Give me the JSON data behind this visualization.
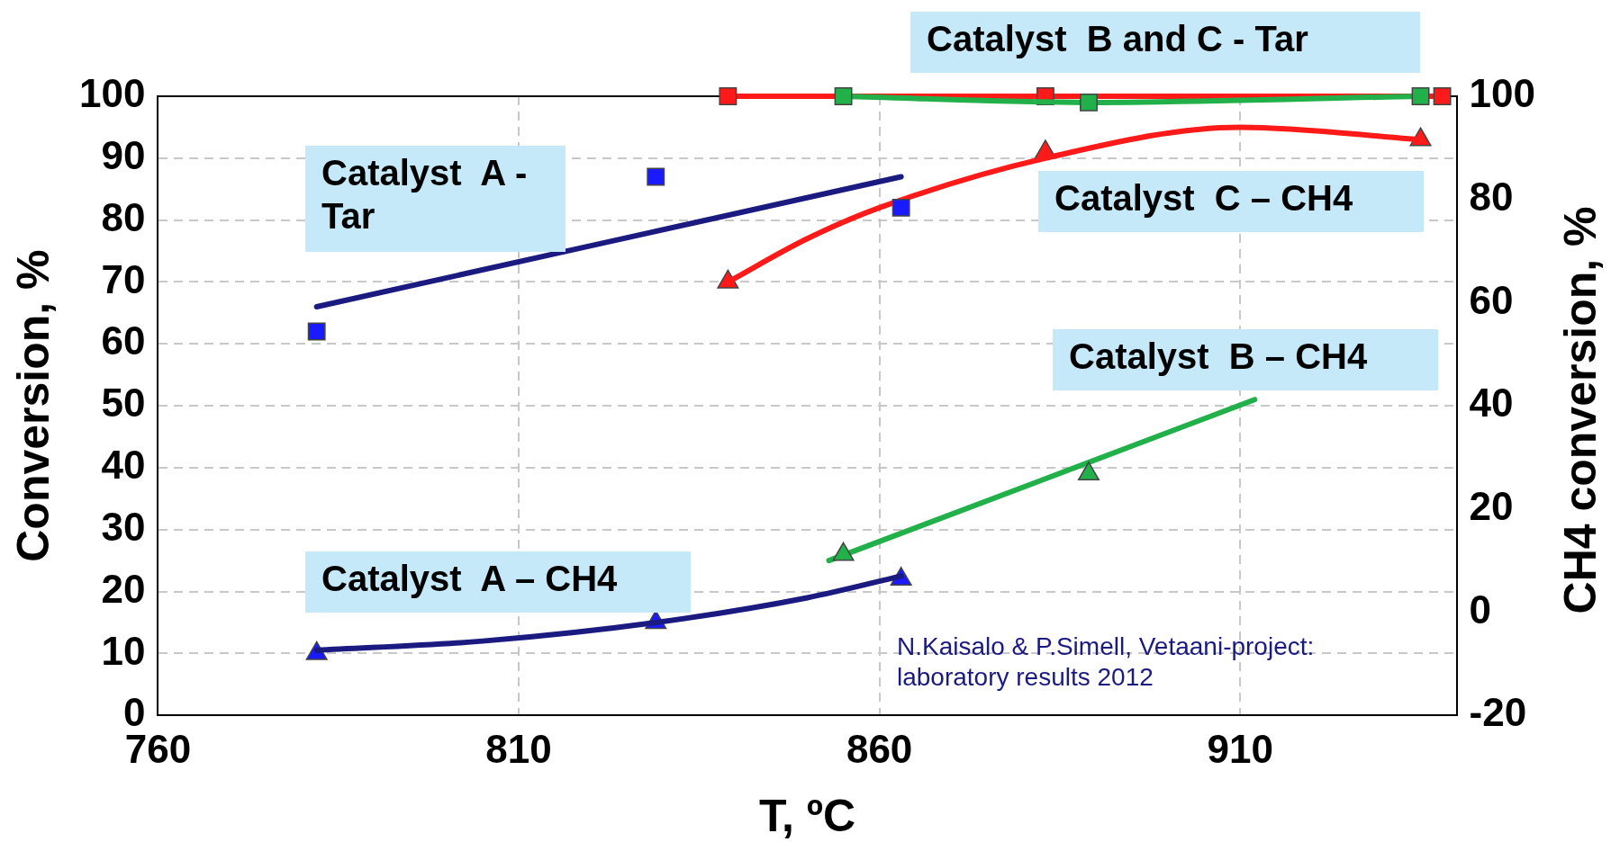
{
  "chart_data": {
    "type": "scatter",
    "xlabel": "T, ºC",
    "ylabel": "Conversion, %",
    "y2label": "CH4 conversion, %",
    "xlim": [
      760,
      940
    ],
    "xticks": [
      760,
      810,
      860,
      910
    ],
    "ylim": [
      0,
      100
    ],
    "yticks": [
      0,
      10,
      20,
      30,
      40,
      50,
      60,
      70,
      80,
      90,
      100
    ],
    "y2lim": [
      -20,
      100
    ],
    "y2ticks": [
      -20,
      0,
      20,
      40,
      60,
      80,
      100
    ],
    "grid": true,
    "legend": false,
    "series": [
      {
        "type": "line",
        "marker": "none",
        "color": "#1a1a80",
        "x": [
          782,
          863
        ],
        "values": [
          66,
          87
        ]
      },
      {
        "marker": "square",
        "color": "#1a1aff",
        "x": [
          782,
          829,
          863
        ],
        "values": [
          62,
          87,
          82
        ]
      },
      {
        "type": "line",
        "marker": "none",
        "color": "#1a1a80",
        "x": [
          782,
          805,
          829,
          850,
          863
        ],
        "values": [
          10.5,
          12,
          15,
          19,
          22.5
        ]
      },
      {
        "marker": "triangle",
        "color": "#1a1aff",
        "x": [
          782,
          829,
          863
        ],
        "values": [
          10,
          15,
          22
        ]
      },
      {
        "type": "line",
        "marker": "none",
        "color": "#ff1a1a",
        "x": [
          839,
          850,
          860,
          883,
          910,
          935
        ],
        "values": [
          70,
          77,
          82,
          90,
          95,
          93
        ]
      },
      {
        "marker": "triangle",
        "color": "#ff1a1a",
        "x": [
          839,
          883,
          935
        ],
        "values": [
          70,
          91,
          93
        ]
      },
      {
        "marker": "triangle",
        "color": "#22b04a",
        "x": [
          855,
          889
        ],
        "values": [
          26,
          39
        ]
      },
      {
        "type": "line",
        "marker": "none",
        "color": "#22b04a",
        "x": [
          853,
          912
        ],
        "values": [
          25,
          51
        ]
      },
      {
        "type": "line",
        "marker": "square",
        "color": "#22b04a",
        "x": [
          855,
          889,
          935
        ],
        "values": [
          100,
          99,
          100
        ]
      },
      {
        "type": "line",
        "marker": "square",
        "color": "#ff1a1a",
        "x": [
          839,
          883,
          938
        ],
        "values": [
          100,
          100,
          100
        ]
      }
    ],
    "annotations": [
      "Catalyst  B and C - Tar",
      "Catalyst  A - Tar",
      "Catalyst  C – CH4",
      "Catalyst  B – CH4",
      "Catalyst  A – CH4",
      "N.Kaisalo & P.Simell, Vetaani-project: laboratory results 2012"
    ]
  }
}
